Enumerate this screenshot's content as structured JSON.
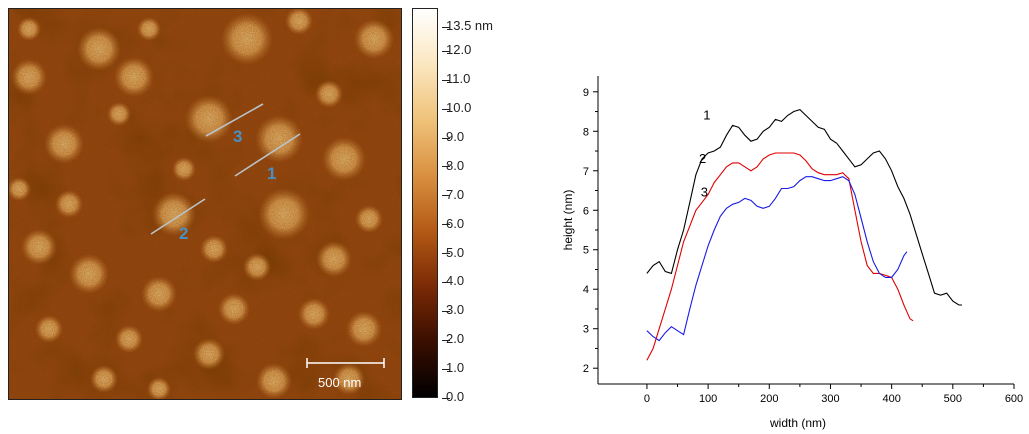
{
  "afm_image": {
    "line_labels": [
      "3",
      "1",
      "2"
    ],
    "line_label_color": "#4a8fc2",
    "scalebar_label": "500 nm"
  },
  "colorbar": {
    "max_label": "13.5 nm",
    "ticks": [
      "12.0",
      "11.0",
      "10.0",
      "9.0",
      "8.0",
      "7.0",
      "6.0",
      "5.0",
      "4.0",
      "3.0",
      "2.0",
      "1.0",
      "0.0"
    ],
    "tick_values": [
      12,
      11,
      10,
      9,
      8,
      7,
      6,
      5,
      4,
      3,
      2,
      1,
      0
    ],
    "max_value": 13.5,
    "gradient": [
      "#000000",
      "#3a0e00",
      "#7a2a05",
      "#b45a16",
      "#d99040",
      "#efc27a",
      "#fbe7c0",
      "#ffffff"
    ]
  },
  "chart_data": {
    "type": "line",
    "xlabel": "width (nm)",
    "ylabel": "height (nm)",
    "xlim": [
      -80,
      600
    ],
    "ylim": [
      1.6,
      9.4
    ],
    "xticks": [
      0,
      100,
      200,
      300,
      400,
      500,
      600
    ],
    "yticks": [
      2,
      3,
      4,
      5,
      6,
      7,
      8,
      9
    ],
    "grid": false,
    "series": [
      {
        "name": "1",
        "color": "#000000",
        "label_at": [
          92,
          8.3
        ],
        "x": [
          0,
          10,
          20,
          30,
          40,
          50,
          60,
          70,
          80,
          90,
          100,
          110,
          120,
          130,
          140,
          150,
          160,
          170,
          180,
          190,
          200,
          210,
          220,
          230,
          240,
          250,
          260,
          270,
          280,
          290,
          300,
          310,
          320,
          330,
          340,
          350,
          360,
          370,
          380,
          390,
          400,
          410,
          420,
          430,
          440,
          450,
          460,
          470,
          480,
          490,
          500,
          510,
          515
        ],
        "values": [
          4.4,
          4.6,
          4.7,
          4.45,
          4.4,
          5.0,
          5.5,
          6.2,
          6.9,
          7.3,
          7.45,
          7.5,
          7.6,
          7.9,
          8.15,
          8.1,
          7.9,
          7.75,
          7.8,
          8.0,
          8.1,
          8.3,
          8.25,
          8.4,
          8.5,
          8.55,
          8.4,
          8.25,
          8.1,
          8.05,
          7.8,
          7.7,
          7.5,
          7.3,
          7.1,
          7.15,
          7.3,
          7.45,
          7.5,
          7.3,
          7.0,
          6.6,
          6.3,
          5.9,
          5.4,
          4.9,
          4.4,
          3.9,
          3.85,
          3.9,
          3.7,
          3.6,
          3.6
        ]
      },
      {
        "name": "2",
        "color": "#e00000",
        "label_at": [
          85,
          7.2
        ],
        "x": [
          0,
          10,
          20,
          30,
          40,
          50,
          60,
          70,
          80,
          90,
          100,
          110,
          120,
          130,
          140,
          150,
          160,
          170,
          180,
          190,
          200,
          210,
          220,
          230,
          240,
          250,
          260,
          270,
          280,
          290,
          300,
          310,
          320,
          330,
          340,
          350,
          360,
          370,
          380,
          390,
          400,
          410,
          420,
          430,
          435
        ],
        "values": [
          2.2,
          2.5,
          3.0,
          3.5,
          4.0,
          4.6,
          5.2,
          5.6,
          6.0,
          6.2,
          6.4,
          6.7,
          6.9,
          7.1,
          7.2,
          7.2,
          7.1,
          7.0,
          7.1,
          7.3,
          7.4,
          7.45,
          7.45,
          7.45,
          7.45,
          7.4,
          7.25,
          7.05,
          6.95,
          6.9,
          6.9,
          6.9,
          6.95,
          6.8,
          6.0,
          5.2,
          4.6,
          4.4,
          4.4,
          4.35,
          4.3,
          4.0,
          3.6,
          3.25,
          3.2
        ]
      },
      {
        "name": "3",
        "color": "#1a1ae6",
        "label_at": [
          88,
          6.35
        ],
        "x": [
          0,
          10,
          20,
          30,
          40,
          50,
          60,
          70,
          80,
          90,
          100,
          110,
          120,
          130,
          140,
          150,
          160,
          170,
          180,
          190,
          200,
          210,
          220,
          230,
          240,
          250,
          260,
          270,
          280,
          290,
          300,
          310,
          320,
          330,
          340,
          350,
          360,
          370,
          380,
          390,
          400,
          410,
          420,
          425
        ],
        "values": [
          2.95,
          2.8,
          2.7,
          2.9,
          3.05,
          2.95,
          2.85,
          3.5,
          4.1,
          4.6,
          5.1,
          5.5,
          5.85,
          6.05,
          6.15,
          6.2,
          6.3,
          6.25,
          6.1,
          6.05,
          6.1,
          6.3,
          6.55,
          6.55,
          6.6,
          6.75,
          6.85,
          6.85,
          6.8,
          6.75,
          6.75,
          6.8,
          6.85,
          6.75,
          6.4,
          5.8,
          5.2,
          4.7,
          4.4,
          4.3,
          4.3,
          4.5,
          4.85,
          4.95
        ]
      }
    ]
  }
}
